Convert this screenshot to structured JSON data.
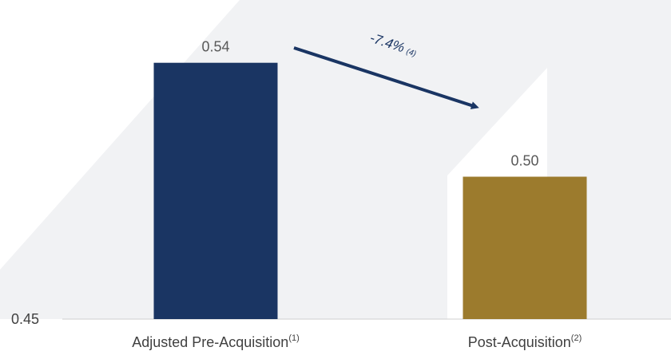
{
  "chart_data": {
    "type": "bar",
    "categories": [
      "Adjusted Pre-Acquisition",
      "Post-Acquisition"
    ],
    "category_superscripts": [
      "(1)",
      "(2)"
    ],
    "values": [
      0.54,
      0.5
    ],
    "value_labels": [
      "0.54",
      "0.50"
    ],
    "title": "",
    "xlabel": "",
    "ylabel": "",
    "ylim": [
      0.45,
      0.55
    ],
    "y_tick_labels": [
      "0.45"
    ],
    "grid": false,
    "legend": "none",
    "annotation": {
      "text": "-7.4%",
      "superscript": "(4)",
      "from": "Adjusted Pre-Acquisition",
      "to": "Post-Acquisition"
    },
    "colors": {
      "bar_1": "#1a3563",
      "bar_2": "#9c7b2d",
      "arrow": "#1a3563",
      "background_shape": "#f1f2f4",
      "axis": "#cfcfcf"
    }
  }
}
